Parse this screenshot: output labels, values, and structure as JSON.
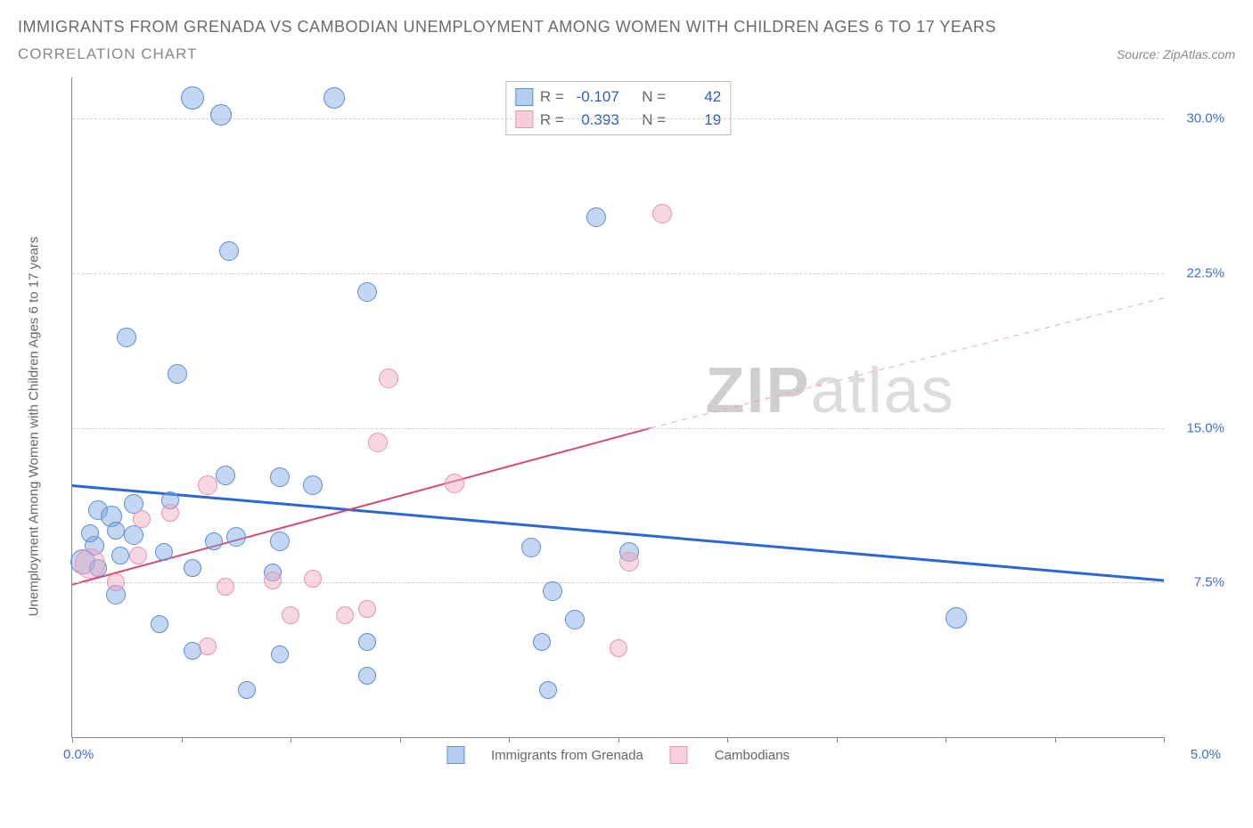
{
  "title": "IMMIGRANTS FROM GRENADA VS CAMBODIAN UNEMPLOYMENT AMONG WOMEN WITH CHILDREN AGES 6 TO 17 YEARS",
  "subtitle": "CORRELATION CHART",
  "source": "Source: ZipAtlas.com",
  "yaxis_label": "Unemployment Among Women with Children Ages 6 to 17 years",
  "watermark_bold": "ZIP",
  "watermark_light": "atlas",
  "chart": {
    "type": "scatter",
    "x_min": 0.0,
    "x_max": 5.0,
    "y_min": 0.0,
    "y_max": 32.0,
    "x_ticks": [
      0.0,
      0.5,
      1.0,
      1.5,
      2.0,
      2.5,
      3.0,
      3.5,
      4.0,
      4.5,
      5.0
    ],
    "x_tick_labels_shown": {
      "0": "0.0%",
      "5": "5.0%"
    },
    "y_ticks": [
      7.5,
      15.0,
      22.5,
      30.0
    ],
    "y_tick_labels": [
      "7.5%",
      "15.0%",
      "22.5%",
      "30.0%"
    ],
    "grid_color": "#d0d0d0",
    "axis_color": "#888888",
    "background": "#ffffff",
    "point_radius": 10,
    "series": [
      {
        "name": "Immigrants from Grenada",
        "color_fill": "rgba(121,164,226,0.45)",
        "color_stroke": "#5c8fd6",
        "R": -0.107,
        "N": 42,
        "trend": {
          "x1": 0.0,
          "y1": 12.2,
          "x2": 5.0,
          "y2": 7.6,
          "dash": false,
          "color": "#2a66d4",
          "width": 3
        },
        "points": [
          {
            "x": 0.55,
            "y": 31.0,
            "r": 12
          },
          {
            "x": 0.68,
            "y": 30.2,
            "r": 11
          },
          {
            "x": 1.2,
            "y": 31.0,
            "r": 11
          },
          {
            "x": 0.72,
            "y": 23.6,
            "r": 10
          },
          {
            "x": 1.35,
            "y": 21.6,
            "r": 10
          },
          {
            "x": 0.25,
            "y": 19.4,
            "r": 10
          },
          {
            "x": 0.48,
            "y": 17.6,
            "r": 10
          },
          {
            "x": 0.7,
            "y": 12.7,
            "r": 10
          },
          {
            "x": 0.95,
            "y": 12.6,
            "r": 10
          },
          {
            "x": 1.1,
            "y": 12.2,
            "r": 10
          },
          {
            "x": 0.12,
            "y": 11.0,
            "r": 10
          },
          {
            "x": 0.18,
            "y": 10.7,
            "r": 11
          },
          {
            "x": 0.2,
            "y": 10.0,
            "r": 9
          },
          {
            "x": 0.1,
            "y": 9.3,
            "r": 10
          },
          {
            "x": 0.28,
            "y": 9.8,
            "r": 10
          },
          {
            "x": 0.22,
            "y": 8.8,
            "r": 9
          },
          {
            "x": 0.65,
            "y": 9.5,
            "r": 9
          },
          {
            "x": 0.75,
            "y": 9.7,
            "r": 10
          },
          {
            "x": 0.95,
            "y": 9.5,
            "r": 10
          },
          {
            "x": 0.05,
            "y": 8.5,
            "r": 13
          },
          {
            "x": 0.28,
            "y": 11.3,
            "r": 10
          },
          {
            "x": 0.45,
            "y": 11.5,
            "r": 9
          },
          {
            "x": 2.1,
            "y": 9.2,
            "r": 10
          },
          {
            "x": 2.55,
            "y": 9.0,
            "r": 10
          },
          {
            "x": 0.2,
            "y": 6.9,
            "r": 10
          },
          {
            "x": 2.2,
            "y": 7.1,
            "r": 10
          },
          {
            "x": 2.3,
            "y": 5.7,
            "r": 10
          },
          {
            "x": 0.55,
            "y": 4.2,
            "r": 9
          },
          {
            "x": 0.95,
            "y": 4.0,
            "r": 9
          },
          {
            "x": 1.35,
            "y": 4.6,
            "r": 9
          },
          {
            "x": 1.35,
            "y": 3.0,
            "r": 9
          },
          {
            "x": 0.8,
            "y": 2.3,
            "r": 9
          },
          {
            "x": 2.18,
            "y": 2.3,
            "r": 9
          },
          {
            "x": 2.4,
            "y": 25.2,
            "r": 10
          },
          {
            "x": 4.05,
            "y": 5.8,
            "r": 11
          },
          {
            "x": 2.15,
            "y": 4.6,
            "r": 9
          },
          {
            "x": 0.42,
            "y": 9.0,
            "r": 9
          },
          {
            "x": 0.55,
            "y": 8.2,
            "r": 9
          },
          {
            "x": 0.92,
            "y": 8.0,
            "r": 9
          },
          {
            "x": 0.4,
            "y": 5.5,
            "r": 9
          },
          {
            "x": 0.12,
            "y": 8.2,
            "r": 9
          },
          {
            "x": 0.08,
            "y": 9.9,
            "r": 9
          }
        ]
      },
      {
        "name": "Cambodians",
        "color_fill": "rgba(238,168,188,0.45)",
        "color_stroke": "#e594b0",
        "R": 0.393,
        "N": 19,
        "trend_solid": {
          "x1": 0.0,
          "y1": 7.4,
          "x2": 2.65,
          "y2": 15.0,
          "color": "#d9486f",
          "width": 2
        },
        "trend_dash": {
          "x1": 2.65,
          "y1": 15.0,
          "x2": 5.0,
          "y2": 21.3,
          "color": "#eaa6b8",
          "width": 1
        },
        "points": [
          {
            "x": 2.7,
            "y": 25.4,
            "r": 10
          },
          {
            "x": 1.45,
            "y": 17.4,
            "r": 10
          },
          {
            "x": 1.4,
            "y": 14.3,
            "r": 10
          },
          {
            "x": 1.75,
            "y": 12.3,
            "r": 10
          },
          {
            "x": 0.62,
            "y": 12.2,
            "r": 10
          },
          {
            "x": 0.32,
            "y": 10.6,
            "r": 9
          },
          {
            "x": 0.45,
            "y": 10.9,
            "r": 9
          },
          {
            "x": 0.08,
            "y": 8.4,
            "r": 16
          },
          {
            "x": 0.7,
            "y": 7.3,
            "r": 9
          },
          {
            "x": 0.92,
            "y": 7.6,
            "r": 9
          },
          {
            "x": 1.1,
            "y": 7.7,
            "r": 9
          },
          {
            "x": 1.0,
            "y": 5.9,
            "r": 9
          },
          {
            "x": 1.25,
            "y": 5.9,
            "r": 9
          },
          {
            "x": 1.35,
            "y": 6.2,
            "r": 9
          },
          {
            "x": 0.62,
            "y": 4.4,
            "r": 9
          },
          {
            "x": 2.55,
            "y": 8.5,
            "r": 10
          },
          {
            "x": 2.5,
            "y": 4.3,
            "r": 9
          },
          {
            "x": 0.2,
            "y": 7.5,
            "r": 9
          },
          {
            "x": 0.3,
            "y": 8.8,
            "r": 9
          }
        ]
      }
    ]
  },
  "stats_labels": {
    "R": "R =",
    "N": "N ="
  },
  "legend": [
    "Immigrants from Grenada",
    "Cambodians"
  ]
}
